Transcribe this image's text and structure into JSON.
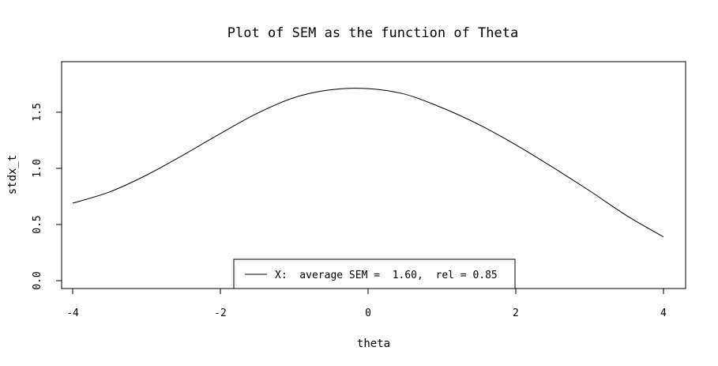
{
  "chart_data": {
    "type": "line",
    "title": "Plot of SEM as the function of Theta",
    "xlabel": "theta",
    "ylabel": "stdx_t",
    "xlim": [
      -4.15,
      4.3
    ],
    "ylim": [
      -0.07,
      1.95
    ],
    "xticks": [
      "-4",
      "-2",
      "0",
      "2",
      "4"
    ],
    "yticks": [
      "0.0",
      "0.5",
      "1.0",
      "1.5"
    ],
    "grid": false,
    "legend_position": "bottom-center",
    "series": [
      {
        "name": "X:  average SEM =  1.60,  rel = 0.85",
        "color": "#000000",
        "x": [
          -4.0,
          -3.5,
          -3.0,
          -2.5,
          -2.0,
          -1.5,
          -1.0,
          -0.5,
          0.0,
          0.5,
          1.0,
          1.5,
          2.0,
          2.5,
          3.0,
          3.5,
          4.0
        ],
        "y": [
          0.69,
          0.79,
          0.94,
          1.12,
          1.31,
          1.49,
          1.63,
          1.7,
          1.71,
          1.66,
          1.54,
          1.39,
          1.21,
          1.01,
          0.8,
          0.58,
          0.39
        ]
      }
    ]
  }
}
